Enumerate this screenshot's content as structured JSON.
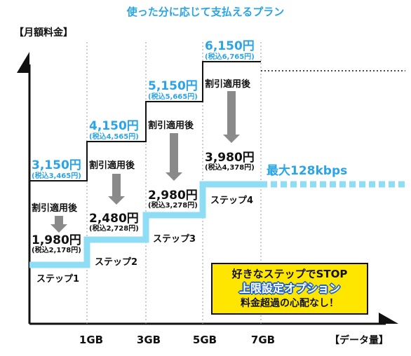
{
  "page": {
    "title": "使った分に応じて支払えるプラン",
    "ylabel": "【月額料金】",
    "xlabel": "【データ量】"
  },
  "chart_data": {
    "type": "step",
    "title": "使った分に応じて支払えるプラン",
    "ylabel": "【月額料金】",
    "xlabel": "【データ量】",
    "x_ticks": [
      "1GB",
      "3GB",
      "5GB",
      "7GB"
    ],
    "max_speed_label": "最大128kbps",
    "discount_label": "割引適用後",
    "steps": [
      {
        "name": "ステップ1",
        "price": "3,150円",
        "price_tax": "(税込3,465円)",
        "discounted": "1,980円",
        "discounted_tax": "(税込2,178円)"
      },
      {
        "name": "ステップ2",
        "price": "4,150円",
        "price_tax": "(税込4,565円)",
        "discounted": "2,480円",
        "discounted_tax": "(税込2,728円)"
      },
      {
        "name": "ステップ3",
        "price": "5,150円",
        "price_tax": "(税込5,665円)",
        "discounted": "2,980円",
        "discounted_tax": "(税込3,278円)"
      },
      {
        "name": "ステップ4",
        "price": "6,150円",
        "price_tax": "(税込6,765円)",
        "discounted": "3,980円",
        "discounted_tax": "(税込4,378円)"
      }
    ],
    "colors": {
      "accent": "#2aa4e8",
      "discount_line": "#8fdcf5",
      "promo_bg": "#ffe600",
      "promo_blue": "#1f63c8"
    }
  },
  "promo": {
    "line1": "好きなステップでSTOP",
    "line2": "上限設定オプション",
    "line3": "料金超過の心配なし！"
  }
}
